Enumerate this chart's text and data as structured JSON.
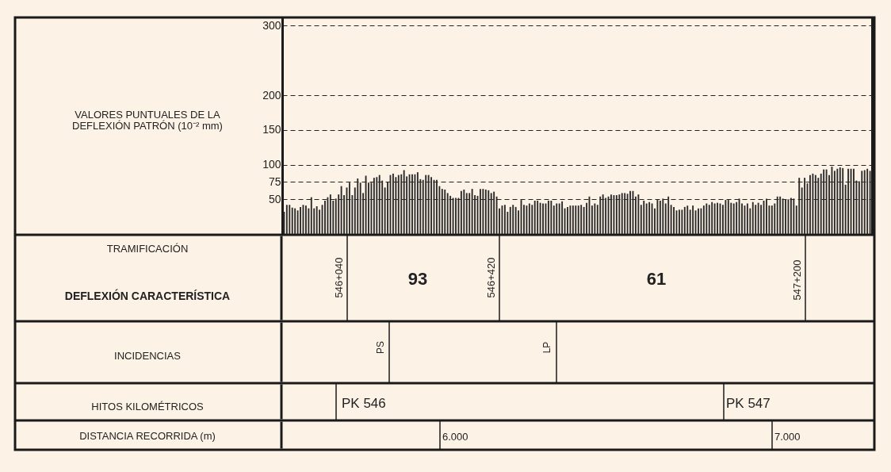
{
  "chart_data": {
    "type": "bar",
    "ylabel": "VALORES PUNTUALES DE LA DEFLEXIÓN PATRÓN (10⁻² mm)",
    "categories": [
      null,
      null,
      null,
      null,
      null,
      null,
      null,
      null,
      null,
      null,
      null,
      null,
      null,
      null,
      null,
      null,
      null,
      null,
      null,
      null,
      null,
      null,
      null,
      null,
      null,
      null,
      null,
      null,
      null,
      null,
      null,
      null,
      null,
      null,
      null,
      null,
      null,
      null,
      null,
      null,
      null,
      null,
      null,
      null,
      null,
      null,
      null,
      null,
      null,
      null,
      null,
      null,
      null,
      null,
      null,
      null,
      null,
      null,
      null,
      null,
      null,
      null,
      null,
      null,
      null,
      null,
      null,
      null,
      null,
      null,
      null,
      null,
      null,
      null,
      null,
      null,
      null,
      null,
      null,
      null,
      null,
      null,
      null,
      null,
      null,
      null,
      null,
      null,
      null,
      null,
      null,
      null,
      null,
      null,
      null,
      null,
      null,
      null,
      null,
      null,
      null,
      null,
      null,
      null,
      null,
      null,
      null,
      null,
      null,
      null,
      null,
      null,
      null,
      null,
      null,
      null,
      null,
      null,
      null,
      null,
      null,
      null,
      null,
      null,
      null,
      null,
      null,
      null,
      null,
      null,
      null,
      null,
      null,
      null,
      null,
      null,
      null,
      null,
      null,
      null,
      null,
      null,
      null,
      null,
      null,
      null,
      null,
      null,
      null,
      null,
      null,
      null,
      null,
      null,
      null,
      null,
      null,
      null,
      null,
      null,
      null,
      null,
      null,
      null,
      null,
      null,
      null,
      null,
      null,
      null,
      null,
      null,
      null,
      null,
      null,
      null,
      null,
      null,
      null,
      null,
      null,
      null,
      null,
      null,
      null,
      null,
      null,
      null,
      null,
      null,
      null,
      null,
      null,
      null,
      null,
      null,
      null,
      null,
      null,
      null,
      null,
      null,
      null,
      null,
      null,
      null,
      null,
      null,
      null,
      null,
      null,
      null,
      null,
      null,
      null,
      null
    ],
    "values": [
      32,
      42,
      42,
      38,
      37,
      34,
      39,
      42,
      41,
      37,
      53,
      37,
      40,
      35,
      42,
      48,
      53,
      57,
      48,
      51,
      57,
      69,
      56,
      67,
      74,
      56,
      67,
      80,
      74,
      59,
      84,
      74,
      74,
      81,
      82,
      85,
      77,
      67,
      75,
      85,
      87,
      82,
      85,
      86,
      92,
      83,
      86,
      86,
      86,
      89,
      79,
      78,
      85,
      85,
      82,
      78,
      78,
      69,
      65,
      64,
      59,
      55,
      52,
      52,
      52,
      62,
      64,
      59,
      59,
      65,
      56,
      55,
      65,
      65,
      64,
      63,
      59,
      61,
      54,
      37,
      41,
      42,
      32,
      39,
      42,
      39,
      34,
      49,
      42,
      41,
      44,
      42,
      48,
      48,
      45,
      44,
      44,
      48,
      48,
      41,
      44,
      44,
      47,
      37,
      39,
      41,
      41,
      41,
      41,
      42,
      39,
      45,
      54,
      41,
      44,
      42,
      54,
      57,
      52,
      54,
      57,
      56,
      56,
      57,
      59,
      59,
      58,
      62,
      62,
      54,
      57,
      42,
      48,
      44,
      46,
      44,
      37,
      49,
      48,
      51,
      44,
      54,
      42,
      39,
      34,
      35,
      35,
      39,
      41,
      35,
      41,
      34,
      37,
      37,
      41,
      44,
      42,
      46,
      44,
      45,
      44,
      42,
      49,
      49,
      45,
      44,
      46,
      51,
      44,
      41,
      44,
      37,
      46,
      42,
      45,
      42,
      48,
      51,
      41,
      41,
      44,
      54,
      54,
      51,
      50,
      50,
      52,
      51,
      41,
      81,
      67,
      81,
      73,
      85,
      87,
      85,
      81,
      87,
      93,
      93,
      85,
      97,
      91,
      94,
      96,
      95,
      71,
      94,
      94,
      94,
      77,
      76,
      91,
      92,
      94,
      91
    ],
    "color": "#2b2b2b",
    "ylim": [
      0,
      312
    ],
    "yticks": [
      50,
      75,
      100,
      150,
      200,
      300
    ],
    "grid": "y",
    "tick_labels": "y",
    "annotations": [
      "TRAMIFICACIÓN",
      "DEFLEXIÓN CARACTERÍSTICA",
      "546+040",
      "93",
      "546+420",
      "61",
      "547+200",
      "INCIDENCIAS",
      "PS",
      "LP",
      "HITOS KILOMÉTRICOS",
      "PK 546",
      "PK 547",
      "DISTANCIA RECORRIDA (m)",
      "6.000",
      "7.000"
    ]
  }
}
